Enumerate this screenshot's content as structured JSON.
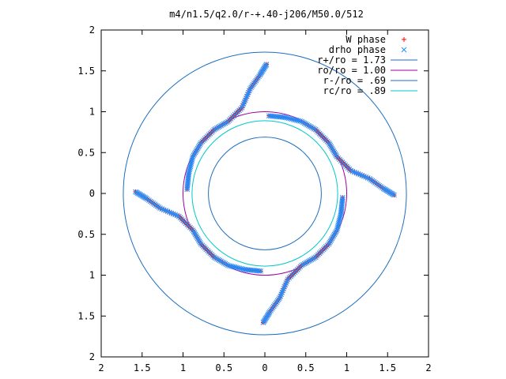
{
  "chart_data": {
    "type": "scatter",
    "title": "m4/n1.5/q2.0/r-+.40-j206/M50.0/512",
    "xlim": [
      -2,
      2
    ],
    "ylim": [
      -2,
      2
    ],
    "x_ticks": [
      -2,
      -1.5,
      -1,
      -0.5,
      0,
      0.5,
      1,
      1.5,
      2
    ],
    "y_ticks": [
      -2,
      -1.5,
      -1,
      -0.5,
      0,
      0.5,
      1,
      1.5,
      2
    ],
    "x_tick_labels": [
      "2",
      "1.5",
      "1",
      "0.5",
      "0",
      "0.5",
      "1",
      "1.5",
      "2"
    ],
    "y_tick_labels": [
      "2",
      "1.5",
      "1",
      "0.5",
      "0",
      "0.5",
      "1",
      "1.5",
      "2"
    ],
    "grid": false,
    "legend_position": "top-right",
    "series": [
      {
        "name": "W phase",
        "marker": "plus",
        "color": "#ff0000",
        "arms": [
          {
            "rotation_deg": 0,
            "x": [
              0.05,
              0.25,
              0.45,
              0.62,
              0.78,
              0.88,
              1.05,
              1.28,
              1.45,
              1.58
            ],
            "y": [
              0.95,
              0.93,
              0.88,
              0.78,
              0.62,
              0.45,
              0.28,
              0.18,
              0.06,
              -0.02
            ]
          },
          {
            "rotation_deg": 90,
            "x": [
              0.05,
              0.25,
              0.45,
              0.62,
              0.78,
              0.88,
              1.05,
              1.28,
              1.45,
              1.58
            ],
            "y": [
              0.95,
              0.93,
              0.88,
              0.78,
              0.62,
              0.45,
              0.28,
              0.18,
              0.06,
              -0.02
            ]
          },
          {
            "rotation_deg": 180,
            "x": [
              0.05,
              0.25,
              0.45,
              0.62,
              0.78,
              0.88,
              1.05,
              1.28,
              1.45,
              1.58
            ],
            "y": [
              0.95,
              0.93,
              0.88,
              0.78,
              0.62,
              0.45,
              0.28,
              0.18,
              0.06,
              -0.02
            ]
          },
          {
            "rotation_deg": 270,
            "x": [
              0.05,
              0.25,
              0.45,
              0.62,
              0.78,
              0.88,
              1.05,
              1.28,
              1.45,
              1.58
            ],
            "y": [
              0.95,
              0.93,
              0.88,
              0.78,
              0.62,
              0.45,
              0.28,
              0.18,
              0.06,
              -0.02
            ]
          }
        ]
      },
      {
        "name": "drho phase",
        "marker": "cross",
        "color": "#1e90ff",
        "arms": [
          {
            "rotation_deg": 0,
            "x": [
              0.05,
              0.25,
              0.45,
              0.62,
              0.78,
              0.88,
              1.05,
              1.28,
              1.45,
              1.58
            ],
            "y": [
              0.95,
              0.93,
              0.88,
              0.78,
              0.62,
              0.45,
              0.28,
              0.18,
              0.06,
              -0.02
            ]
          },
          {
            "rotation_deg": 90,
            "x": [
              0.05,
              0.25,
              0.45,
              0.62,
              0.78,
              0.88,
              1.05,
              1.28,
              1.45,
              1.58
            ],
            "y": [
              0.95,
              0.93,
              0.88,
              0.78,
              0.62,
              0.45,
              0.28,
              0.18,
              0.06,
              -0.02
            ]
          },
          {
            "rotation_deg": 180,
            "x": [
              0.05,
              0.25,
              0.45,
              0.62,
              0.78,
              0.88,
              1.05,
              1.28,
              1.45,
              1.58
            ],
            "y": [
              0.95,
              0.93,
              0.88,
              0.78,
              0.62,
              0.45,
              0.28,
              0.18,
              0.06,
              -0.02
            ]
          },
          {
            "rotation_deg": 270,
            "x": [
              0.05,
              0.25,
              0.45,
              0.62,
              0.78,
              0.88,
              1.05,
              1.28,
              1.45,
              1.58
            ],
            "y": [
              0.95,
              0.93,
              0.88,
              0.78,
              0.62,
              0.45,
              0.28,
              0.18,
              0.06,
              -0.02
            ]
          }
        ]
      }
    ],
    "circles": [
      {
        "name": "r+/ro = 1.73",
        "radius": 1.73,
        "color": "#1e6fbf"
      },
      {
        "name": "ro/ro = 1.00",
        "radius": 1.0,
        "color": "#a000a0"
      },
      {
        "name": "r-/ro = .69",
        "radius": 0.69,
        "color": "#1e6fbf"
      },
      {
        "name": "rc/ro = .89",
        "radius": 0.89,
        "color": "#00c8c8"
      }
    ]
  }
}
